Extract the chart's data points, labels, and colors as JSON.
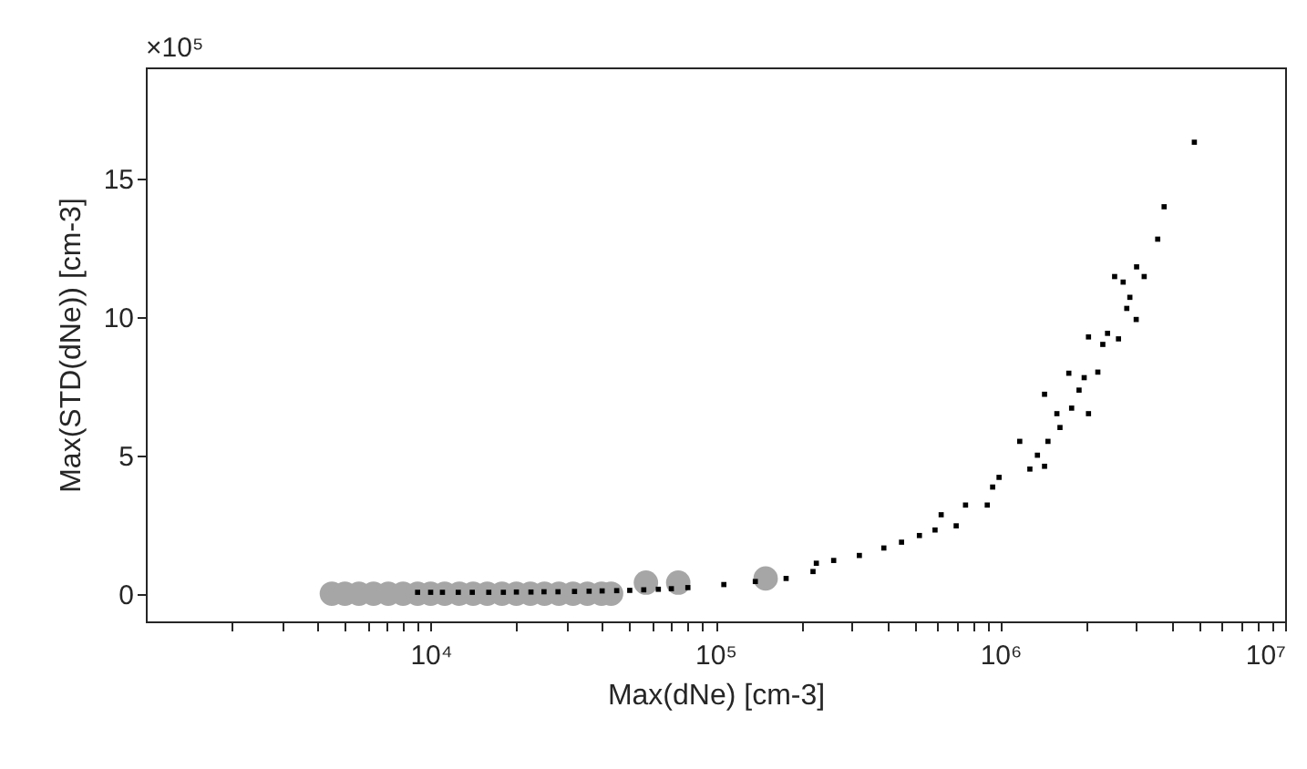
{
  "chart_data": {
    "type": "scatter",
    "xlabel": "Max(dNe) [cm-3]",
    "ylabel": "Max(STD(dNe)) [cm-3]",
    "annotations": [
      "×10⁵"
    ],
    "log": "x",
    "xlim": [
      1000,
      10000000
    ],
    "ylim": [
      -1,
      19
    ],
    "xticks": [
      {
        "value": 2000,
        "label": null
      },
      {
        "value": 3000,
        "label": null
      },
      {
        "value": 4000,
        "label": null
      },
      {
        "value": 5000,
        "label": null
      },
      {
        "value": 6000,
        "label": null
      },
      {
        "value": 7000,
        "label": null
      },
      {
        "value": 8000,
        "label": null
      },
      {
        "value": 9000,
        "label": null
      },
      {
        "value": 10000,
        "label": "10⁴"
      },
      {
        "value": 20000,
        "label": null
      },
      {
        "value": 30000,
        "label": null
      },
      {
        "value": 40000,
        "label": null
      },
      {
        "value": 50000,
        "label": null
      },
      {
        "value": 60000,
        "label": null
      },
      {
        "value": 70000,
        "label": null
      },
      {
        "value": 80000,
        "label": null
      },
      {
        "value": 90000,
        "label": null
      },
      {
        "value": 100000,
        "label": "10⁵"
      },
      {
        "value": 200000,
        "label": null
      },
      {
        "value": 300000,
        "label": null
      },
      {
        "value": 400000,
        "label": null
      },
      {
        "value": 500000,
        "label": null
      },
      {
        "value": 600000,
        "label": null
      },
      {
        "value": 700000,
        "label": null
      },
      {
        "value": 800000,
        "label": null
      },
      {
        "value": 900000,
        "label": null
      },
      {
        "value": 1000000,
        "label": "10⁶"
      },
      {
        "value": 2000000,
        "label": null
      },
      {
        "value": 3000000,
        "label": null
      },
      {
        "value": 4000000,
        "label": null
      },
      {
        "value": 5000000,
        "label": null
      },
      {
        "value": 6000000,
        "label": null
      },
      {
        "value": 7000000,
        "label": null
      },
      {
        "value": 8000000,
        "label": null
      },
      {
        "value": 9000000,
        "label": null
      },
      {
        "value": 10000000,
        "label": "10⁷"
      }
    ],
    "yticks": [
      0,
      5,
      10,
      15
    ],
    "grid": false,
    "series": [
      {
        "color": "#a6a6a6",
        "marker": "circle",
        "x": [
          4500,
          5000,
          5600,
          6300,
          7100,
          8000,
          9000,
          10000,
          11200,
          12600,
          14100,
          15800,
          17800,
          20000,
          22400,
          25100,
          28200,
          31600,
          35500,
          39800,
          43000,
          57000,
          74000,
          150000
        ],
        "values": [
          0,
          0,
          0,
          0,
          0,
          0,
          0,
          0,
          0,
          0,
          0,
          0,
          0,
          0,
          0,
          0,
          0,
          0,
          0,
          0,
          0,
          0.4,
          0.4,
          0.55
        ]
      },
      {
        "color": "#000000",
        "marker": "square",
        "x": [
          9000,
          10000,
          11000,
          12500,
          14000,
          16000,
          18000,
          20000,
          22500,
          25000,
          28000,
          32000,
          36000,
          40000,
          45000,
          50000,
          56000,
          63000,
          70000,
          80000,
          107000,
          138000,
          177000,
          220000,
          226000,
          260000,
          320000,
          390000,
          450000,
          520000,
          590000,
          620000,
          700000,
          755000,
          900000,
          940000,
          990000,
          1170000,
          1270000,
          1350000,
          1430000,
          1430000,
          1470000,
          1580000,
          1620000,
          1740000,
          1780000,
          1890000,
          1970000,
          2040000,
          2040000,
          2200000,
          2290000,
          2380000,
          2520000,
          2600000,
          2700000,
          2780000,
          2850000,
          3000000,
          3010000,
          3200000,
          3570000,
          3760000,
          4800000
        ],
        "values": [
          0.05,
          0.05,
          0.05,
          0.05,
          0.05,
          0.05,
          0.05,
          0.06,
          0.06,
          0.07,
          0.07,
          0.08,
          0.09,
          0.1,
          0.11,
          0.12,
          0.14,
          0.16,
          0.18,
          0.22,
          0.33,
          0.44,
          0.55,
          0.8,
          1.1,
          1.2,
          1.38,
          1.65,
          1.86,
          2.1,
          2.3,
          2.85,
          2.45,
          3.2,
          3.2,
          3.85,
          4.2,
          5.5,
          4.5,
          5.0,
          4.6,
          7.2,
          5.5,
          6.5,
          6.0,
          7.96,
          6.7,
          7.35,
          7.8,
          6.5,
          9.27,
          8.0,
          9.0,
          9.4,
          11.45,
          9.2,
          11.25,
          10.3,
          10.7,
          9.9,
          11.8,
          11.45,
          12.8,
          13.97,
          16.3
        ]
      }
    ]
  }
}
